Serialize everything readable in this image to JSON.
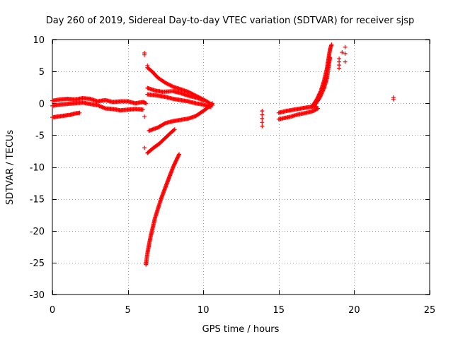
{
  "chart_data": {
    "type": "scatter",
    "title": "Day 260 of 2019, Sidereal Day-to-day VTEC variation (SDTVAR) for receiver sjsp",
    "xlabel": "GPS time / hours",
    "ylabel": "SDTVAR / TECUs",
    "xlim": [
      0,
      25
    ],
    "ylim": [
      -30,
      10
    ],
    "xticks": [
      0,
      5,
      10,
      15,
      20,
      25
    ],
    "yticks": [
      10,
      5,
      0,
      -5,
      -10,
      -15,
      -20,
      -25,
      -30
    ],
    "grid": true,
    "marker": "+",
    "series": [
      {
        "name": "SDTVAR",
        "color": "#ff0000",
        "segments": [
          {
            "name": "early-upper-band",
            "points": [
              [
                0.0,
                0.4
              ],
              [
                0.5,
                0.6
              ],
              [
                1.0,
                0.7
              ],
              [
                1.5,
                0.6
              ],
              [
                2.0,
                0.8
              ],
              [
                2.5,
                0.7
              ],
              [
                3.0,
                0.3
              ],
              [
                3.5,
                0.5
              ],
              [
                4.0,
                0.2
              ],
              [
                4.5,
                0.3
              ],
              [
                5.0,
                0.3
              ],
              [
                5.5,
                0.0
              ],
              [
                6.0,
                0.2
              ],
              [
                6.2,
                0.0
              ]
            ]
          },
          {
            "name": "early-mid-band",
            "points": [
              [
                0.0,
                -0.4
              ],
              [
                0.5,
                -0.2
              ],
              [
                1.0,
                -0.1
              ],
              [
                1.5,
                0.0
              ],
              [
                2.0,
                0.1
              ],
              [
                2.5,
                -0.1
              ],
              [
                3.0,
                -0.3
              ],
              [
                3.5,
                -0.8
              ],
              [
                4.0,
                -0.9
              ],
              [
                4.5,
                -1.1
              ],
              [
                5.0,
                -1.0
              ],
              [
                5.5,
                -0.9
              ],
              [
                6.0,
                -1.0
              ]
            ]
          },
          {
            "name": "early-lower-band",
            "points": [
              [
                0.0,
                -2.2
              ],
              [
                0.3,
                -2.1
              ],
              [
                0.6,
                -2.0
              ],
              [
                0.9,
                -1.9
              ],
              [
                1.2,
                -1.8
              ],
              [
                1.5,
                -1.6
              ],
              [
                1.8,
                -1.5
              ]
            ]
          },
          {
            "name": "upper-arm",
            "points": [
              [
                6.3,
                5.6
              ],
              [
                6.6,
                5.0
              ],
              [
                7.0,
                4.0
              ],
              [
                7.5,
                3.2
              ],
              [
                8.0,
                2.6
              ],
              [
                8.5,
                2.2
              ],
              [
                9.0,
                1.8
              ],
              [
                9.5,
                1.2
              ],
              [
                10.0,
                0.6
              ],
              [
                10.3,
                0.2
              ],
              [
                10.6,
                -0.3
              ]
            ]
          },
          {
            "name": "upper-inner-arm",
            "points": [
              [
                6.3,
                2.4
              ],
              [
                6.8,
                2.0
              ],
              [
                7.3,
                1.8
              ],
              [
                8.0,
                1.9
              ],
              [
                8.5,
                1.6
              ],
              [
                9.0,
                1.2
              ],
              [
                9.5,
                0.9
              ],
              [
                10.0,
                0.5
              ]
            ]
          },
          {
            "name": "middle-arm",
            "points": [
              [
                6.3,
                1.4
              ],
              [
                7.0,
                1.2
              ],
              [
                7.5,
                1.0
              ],
              [
                8.0,
                0.7
              ],
              [
                8.5,
                0.5
              ],
              [
                9.0,
                0.3
              ],
              [
                9.5,
                0.0
              ],
              [
                10.0,
                -0.2
              ],
              [
                10.5,
                -0.6
              ]
            ]
          },
          {
            "name": "lower-arm",
            "points": [
              [
                6.4,
                -4.3
              ],
              [
                7.0,
                -3.8
              ],
              [
                7.5,
                -3.1
              ],
              [
                8.0,
                -2.8
              ],
              [
                8.5,
                -2.6
              ],
              [
                9.0,
                -2.4
              ],
              [
                9.5,
                -2.0
              ],
              [
                10.0,
                -1.2
              ],
              [
                10.4,
                -0.5
              ],
              [
                10.6,
                0.0
              ]
            ]
          },
          {
            "name": "short-descending-streak",
            "points": [
              [
                6.3,
                -7.8
              ],
              [
                6.7,
                -7.0
              ],
              [
                7.1,
                -6.3
              ],
              [
                7.5,
                -5.4
              ],
              [
                7.9,
                -4.5
              ],
              [
                8.1,
                -4.1
              ]
            ]
          },
          {
            "name": "deep-descending-streak",
            "points": [
              [
                6.2,
                -25.3
              ],
              [
                6.3,
                -23.5
              ],
              [
                6.5,
                -21.0
              ],
              [
                6.8,
                -18.0
              ],
              [
                7.2,
                -15.0
              ],
              [
                7.6,
                -12.5
              ],
              [
                8.0,
                -10.0
              ],
              [
                8.4,
                -8.0
              ]
            ]
          },
          {
            "name": "isolated-points-6h",
            "points": [
              [
                6.1,
                7.9
              ],
              [
                6.1,
                7.6
              ],
              [
                6.3,
                5.9
              ],
              [
                6.1,
                -2.1
              ],
              [
                6.1,
                -7.0
              ]
            ]
          },
          {
            "name": "isolated-points-14h",
            "points": [
              [
                13.9,
                -1.2
              ],
              [
                13.9,
                -1.8
              ],
              [
                13.9,
                -2.4
              ],
              [
                13.9,
                -3.0
              ],
              [
                13.9,
                -3.6
              ]
            ]
          },
          {
            "name": "afternoon-band",
            "points": [
              [
                15.0,
                -2.5
              ],
              [
                15.4,
                -2.3
              ],
              [
                15.8,
                -2.1
              ],
              [
                16.2,
                -1.8
              ],
              [
                16.6,
                -1.6
              ],
              [
                17.0,
                -1.4
              ],
              [
                17.3,
                -1.2
              ],
              [
                17.6,
                -0.8
              ]
            ]
          },
          {
            "name": "afternoon-upper-band",
            "points": [
              [
                15.0,
                -1.5
              ],
              [
                15.5,
                -1.2
              ],
              [
                16.0,
                -1.0
              ],
              [
                16.5,
                -0.8
              ],
              [
                17.0,
                -0.6
              ],
              [
                17.5,
                -0.5
              ]
            ]
          },
          {
            "name": "rising-band",
            "points": [
              [
                17.2,
                -0.5
              ],
              [
                17.5,
                0.5
              ],
              [
                17.8,
                2.0
              ],
              [
                18.0,
                3.5
              ],
              [
                18.2,
                5.5
              ],
              [
                18.3,
                7.0
              ],
              [
                18.4,
                8.5
              ],
              [
                18.5,
                9.2
              ]
            ]
          },
          {
            "name": "rising-band-lower",
            "points": [
              [
                17.4,
                -0.2
              ],
              [
                17.7,
                0.8
              ],
              [
                18.0,
                2.4
              ],
              [
                18.2,
                4.0
              ],
              [
                18.3,
                5.8
              ],
              [
                18.4,
                7.2
              ]
            ]
          },
          {
            "name": "isolated-points-19h",
            "points": [
              [
                19.0,
                6.0
              ],
              [
                19.0,
                7.0
              ],
              [
                19.0,
                6.5
              ],
              [
                19.2,
                8.0
              ],
              [
                19.4,
                8.8
              ],
              [
                19.4,
                7.8
              ],
              [
                19.4,
                6.5
              ],
              [
                19.0,
                5.5
              ]
            ]
          },
          {
            "name": "isolated-point-22h",
            "points": [
              [
                22.6,
                0.9
              ],
              [
                22.6,
                0.6
              ]
            ]
          }
        ]
      }
    ]
  }
}
